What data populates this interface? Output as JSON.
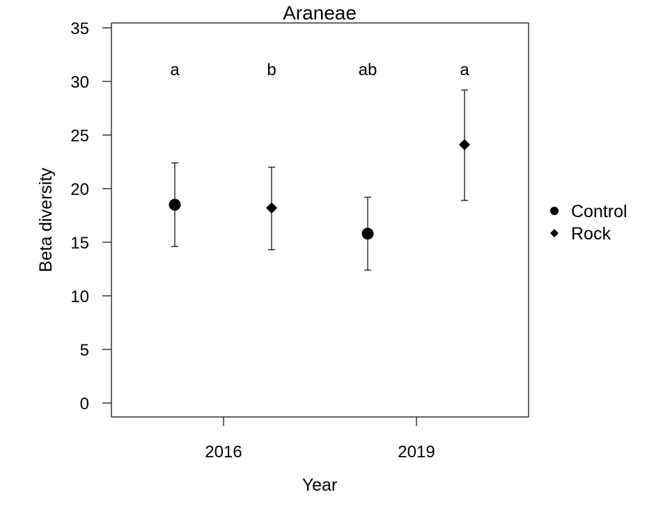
{
  "chart_data": {
    "type": "scatter",
    "title": "Araneae",
    "xlabel": "Year",
    "ylabel": "Beta diversity",
    "ylim": [
      0,
      35
    ],
    "yticks": [
      0,
      5,
      10,
      15,
      20,
      25,
      30,
      35
    ],
    "xticks": [
      "2016",
      "2019"
    ],
    "grid": false,
    "legend_position": "right",
    "series": [
      {
        "name": "Control",
        "marker": "circle",
        "points": [
          {
            "year": "2016",
            "y": 18.5,
            "lower": 14.6,
            "upper": 22.4,
            "letter": "a"
          },
          {
            "year": "2019",
            "y": 15.8,
            "lower": 12.4,
            "upper": 19.2,
            "letter": "ab"
          }
        ]
      },
      {
        "name": "Rock",
        "marker": "diamond",
        "points": [
          {
            "year": "2016",
            "y": 18.2,
            "lower": 14.3,
            "upper": 22.0,
            "letter": "b"
          },
          {
            "year": "2019",
            "y": 24.1,
            "lower": 18.9,
            "upper": 29.2,
            "letter": "a"
          }
        ]
      }
    ]
  }
}
